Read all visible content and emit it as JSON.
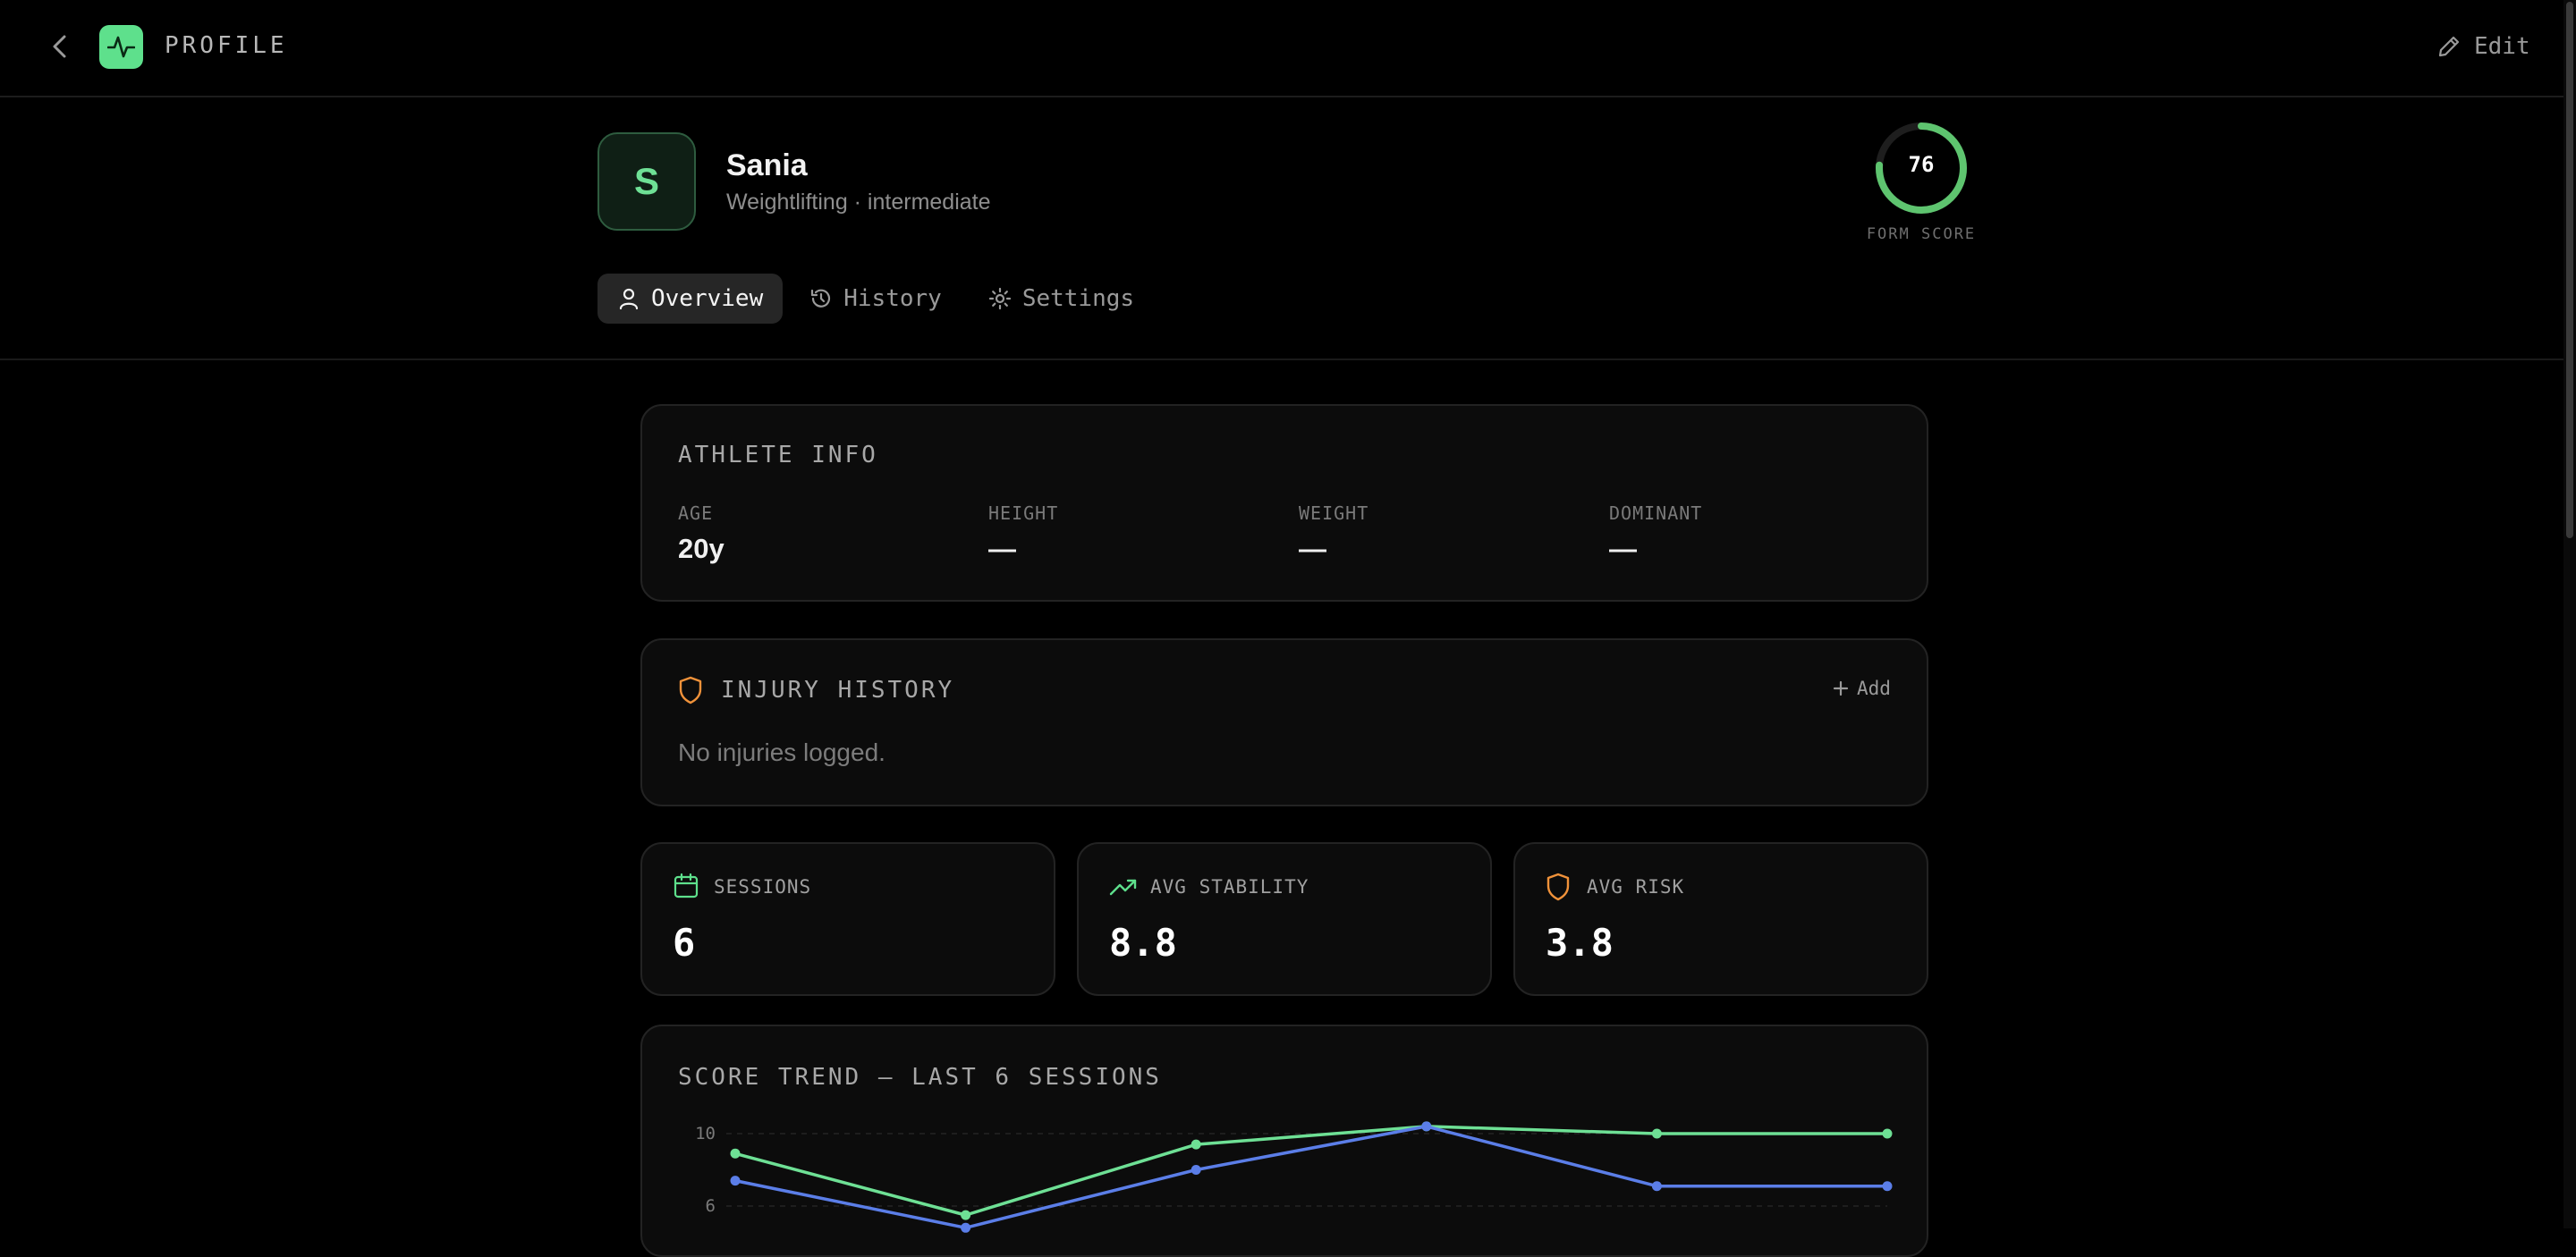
{
  "header": {
    "title": "PROFILE",
    "edit_label": "Edit"
  },
  "profile": {
    "initial": "S",
    "name": "Sania",
    "subtitle": "Weightlifting · intermediate"
  },
  "form_score": {
    "value": 76,
    "percent": 76,
    "label": "FORM SCORE"
  },
  "tabs": [
    {
      "label": "Overview",
      "icon": "user-icon",
      "active": true
    },
    {
      "label": "History",
      "icon": "history-icon",
      "active": false
    },
    {
      "label": "Settings",
      "icon": "gear-icon",
      "active": false
    }
  ],
  "athlete_info": {
    "title": "ATHLETE INFO",
    "fields": [
      {
        "label": "AGE",
        "value": "20y"
      },
      {
        "label": "HEIGHT",
        "value": "—"
      },
      {
        "label": "WEIGHT",
        "value": "—"
      },
      {
        "label": "DOMINANT",
        "value": "—"
      }
    ]
  },
  "injury_history": {
    "title": "INJURY HISTORY",
    "add_label": "Add",
    "empty_text": "No injuries logged."
  },
  "stats": [
    {
      "label": "SESSIONS",
      "value": "6",
      "icon": "calendar-icon",
      "color": "#5ee08c"
    },
    {
      "label": "AVG STABILITY",
      "value": "8.8",
      "icon": "trending-up-icon",
      "color": "#5ee08c"
    },
    {
      "label": "AVG RISK",
      "value": "3.8",
      "icon": "shield-icon",
      "color": "#f0923a"
    }
  ],
  "trend": {
    "title": "SCORE TREND — LAST 6 SESSIONS",
    "chart_data": {
      "type": "line",
      "x": [
        1,
        2,
        3,
        4,
        5,
        6
      ],
      "yticks": [
        10,
        6
      ],
      "series": [
        {
          "color": "#6ee095",
          "values": [
            8.9,
            5.5,
            9.4,
            10.4,
            10.0,
            10.0
          ]
        },
        {
          "color": "#5b7ee8",
          "values": [
            7.4,
            4.8,
            8.0,
            10.4,
            7.1,
            7.1
          ]
        }
      ]
    }
  },
  "colors": {
    "accent": "#5ee08c",
    "warning": "#f0923a",
    "blue": "#5b7ee8"
  }
}
